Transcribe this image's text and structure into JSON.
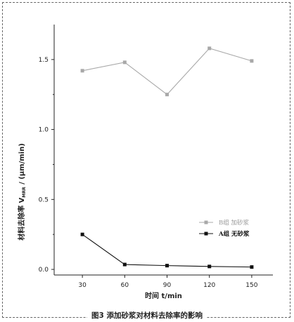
{
  "chart_data": {
    "type": "line",
    "x": [
      30,
      60,
      90,
      120,
      150
    ],
    "series": [
      {
        "name": "B组  加砂浆",
        "values": [
          1.42,
          1.48,
          1.25,
          1.58,
          1.49
        ],
        "color": "#a8a8a8",
        "marker": "square"
      },
      {
        "name": "A组  无砂浆",
        "values": [
          0.25,
          0.035,
          0.027,
          0.021,
          0.017
        ],
        "color": "#111111",
        "marker": "square"
      }
    ],
    "xticks": [
      "30",
      "60",
      "90",
      "120",
      "150"
    ],
    "yticks": [
      "0.0",
      "0.5",
      "1.0",
      "1.5"
    ],
    "ytick_values": [
      0.0,
      0.5,
      1.0,
      1.5
    ],
    "xlim": [
      10,
      165
    ],
    "ylim": [
      -0.04,
      1.75
    ],
    "xlabel": "时间  t/min",
    "ylabel_prefix": "材料去除率  V",
    "ylabel_sub": "MRR",
    "ylabel_suffix": " / (μm/min)",
    "legend_placement": "right-middle",
    "grid": false
  },
  "caption": "图3  添加砂浆对材料去除率的影响"
}
